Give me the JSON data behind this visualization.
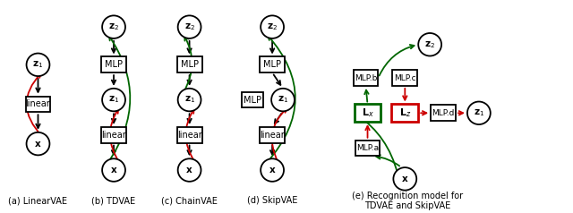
{
  "bg_color": "#ffffff",
  "black": "#000000",
  "red": "#cc0000",
  "green": "#006600",
  "captions": [
    "(a) LinearVAE",
    "(b) TDVAE",
    "(c) ChainVAE",
    "(d) SkipVAE",
    "(e) Recognition model for\nTDVAE and SkipVAE"
  ]
}
